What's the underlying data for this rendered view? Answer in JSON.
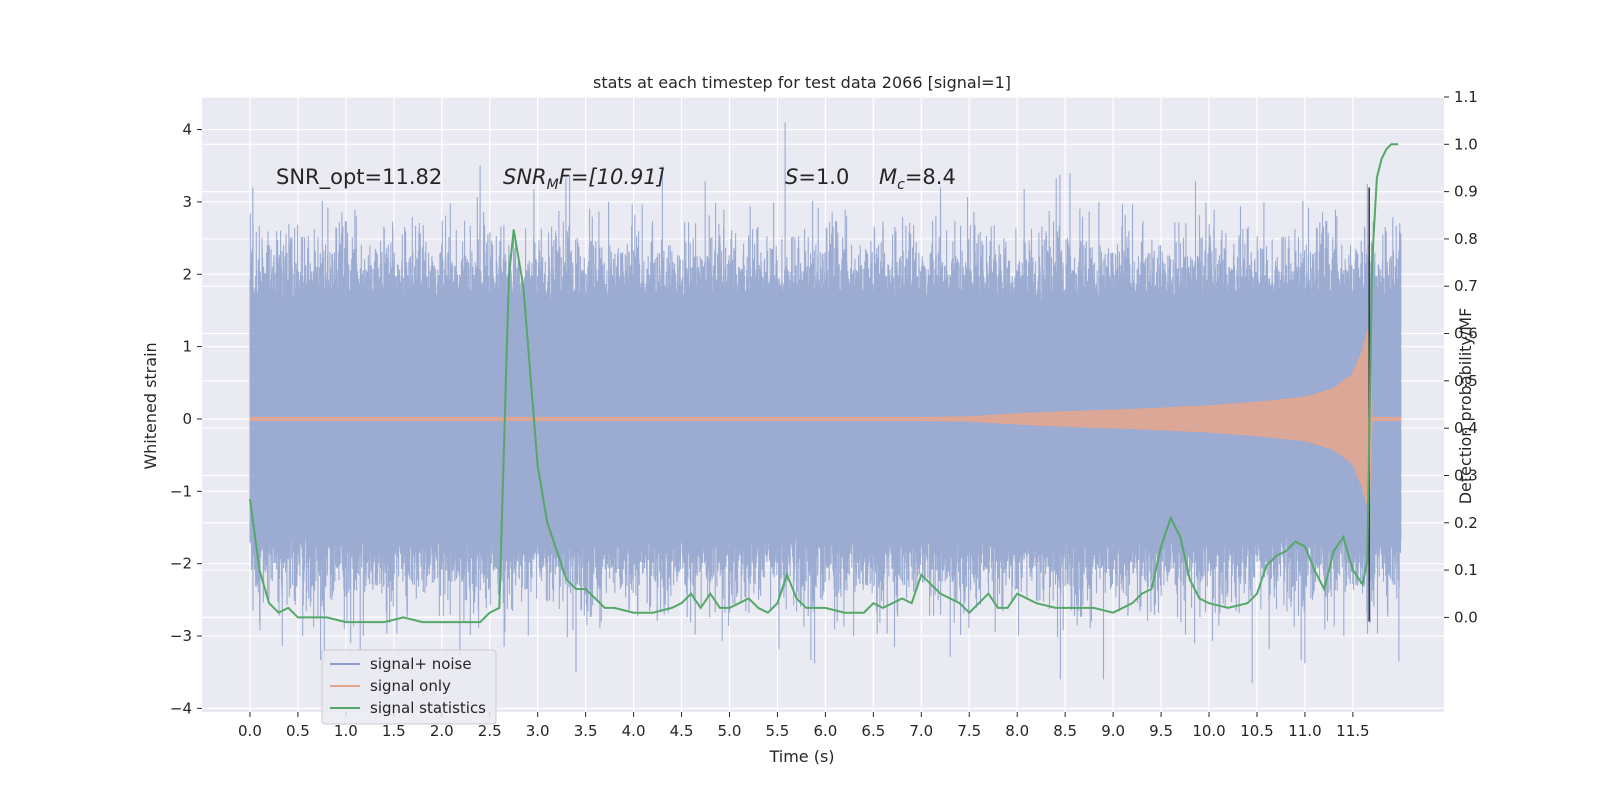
{
  "chart_data": {
    "type": "line",
    "title": "stats at each timestep for test data 2066 [signal=1]",
    "xlabel": "Time (s)",
    "ylabel": "Whitened strain",
    "ylabel_right": "Detection probability/MF",
    "xlim": [
      -0.5,
      12.45
    ],
    "ylim": [
      -4.05,
      4.45
    ],
    "ylim_right": [
      -0.2,
      1.1
    ],
    "x_ticks": [
      0.0,
      0.5,
      1.0,
      1.5,
      2.0,
      2.5,
      3.0,
      3.5,
      4.0,
      4.5,
      5.0,
      5.5,
      6.0,
      6.5,
      7.0,
      7.5,
      8.0,
      8.5,
      9.0,
      9.5,
      10.0,
      10.5,
      11.0,
      11.5
    ],
    "x_tick_labels": [
      "0.0",
      "0.5",
      "1.0",
      "1.5",
      "2.0",
      "2.5",
      "3.0",
      "3.5",
      "4.0",
      "4.5",
      "5.0",
      "5.5",
      "6.0",
      "6.5",
      "7.0",
      "7.5",
      "8.0",
      "8.5",
      "9.0",
      "9.5",
      "10.0",
      "10.5",
      "11.0",
      "11.5"
    ],
    "y_ticks": [
      -4,
      -3,
      -2,
      -1,
      0,
      1,
      2,
      3,
      4
    ],
    "y_tick_labels": [
      "−4",
      "−3",
      "−2",
      "−1",
      "0",
      "1",
      "2",
      "3",
      "4"
    ],
    "y_right_ticks": [
      0.0,
      0.1,
      0.2,
      0.3,
      0.4,
      0.5,
      0.6,
      0.7,
      0.8,
      0.9,
      1.0,
      1.1
    ],
    "y_right_tick_labels": [
      "0.0",
      "0.1",
      "0.2",
      "0.3",
      "0.4",
      "0.5",
      "0.6",
      "0.7",
      "0.8",
      "0.9",
      "1.0",
      "1.1"
    ],
    "grid": true,
    "legend_position": "bottom-left",
    "annotations": {
      "snr_opt": "SNR_opt=11.82",
      "snr_mf_base": "SNR",
      "snr_mf_sub": "M",
      "snr_mf_rest": "F=[10.91]",
      "s_symbol": "S",
      "s_value": "=1.0",
      "mc_base": "M",
      "mc_sub": "c",
      "mc_value": "=8.4"
    },
    "series": [
      {
        "name": "signal+ noise",
        "color": "#8da0cb",
        "description_axis": "left",
        "x_range": [
          0.0,
          12.0
        ],
        "typical_envelope": [
          -1.6,
          1.6
        ],
        "peak_values": [
          {
            "x": 0.03,
            "y": 3.2
          },
          {
            "x": 0.55,
            "y": -3.0
          },
          {
            "x": 1.05,
            "y": -3.1
          },
          {
            "x": 1.15,
            "y": -3.2
          },
          {
            "x": 2.4,
            "y": 3.5
          },
          {
            "x": 2.65,
            "y": -3.15
          },
          {
            "x": 3.4,
            "y": -3.5
          },
          {
            "x": 4.3,
            "y": 3.5
          },
          {
            "x": 5.58,
            "y": 4.1
          },
          {
            "x": 6.72,
            "y": -3.15
          },
          {
            "x": 7.2,
            "y": 3.2
          },
          {
            "x": 8.45,
            "y": -3.6
          },
          {
            "x": 8.55,
            "y": 3.4
          },
          {
            "x": 8.9,
            "y": -3.6
          },
          {
            "x": 9.85,
            "y": -3.1
          },
          {
            "x": 10.45,
            "y": -3.65
          },
          {
            "x": 11.65,
            "y": 3.25
          },
          {
            "x": 11.65,
            "y": -2.8
          },
          {
            "x": 11.98,
            "y": -3.35
          }
        ]
      },
      {
        "name": "signal only",
        "color": "#e6a68c",
        "description_axis": "left",
        "amplitude_envelope": [
          [
            0.0,
            0.02
          ],
          [
            7.0,
            0.02
          ],
          [
            7.5,
            0.03
          ],
          [
            8.0,
            0.07
          ],
          [
            8.5,
            0.1
          ],
          [
            9.0,
            0.12
          ],
          [
            9.5,
            0.15
          ],
          [
            10.0,
            0.18
          ],
          [
            10.5,
            0.23
          ],
          [
            11.0,
            0.3
          ],
          [
            11.3,
            0.42
          ],
          [
            11.5,
            0.62
          ],
          [
            11.6,
            0.95
          ],
          [
            11.67,
            1.3
          ],
          [
            11.7,
            0.02
          ],
          [
            12.0,
            0.02
          ]
        ]
      },
      {
        "name": "signal statistics",
        "color": "#55a868",
        "description_axis": "right",
        "x": [
          0.0,
          0.1,
          0.2,
          0.3,
          0.4,
          0.5,
          0.6,
          0.8,
          1.0,
          1.2,
          1.4,
          1.6,
          1.8,
          2.0,
          2.2,
          2.4,
          2.5,
          2.6,
          2.7,
          2.75,
          2.85,
          3.0,
          3.1,
          3.2,
          3.3,
          3.4,
          3.5,
          3.6,
          3.7,
          3.8,
          4.0,
          4.2,
          4.4,
          4.5,
          4.6,
          4.7,
          4.8,
          4.9,
          5.0,
          5.1,
          5.2,
          5.3,
          5.4,
          5.5,
          5.6,
          5.7,
          5.8,
          6.0,
          6.2,
          6.4,
          6.5,
          6.6,
          6.8,
          6.9,
          7.0,
          7.1,
          7.2,
          7.4,
          7.5,
          7.6,
          7.7,
          7.8,
          7.9,
          8.0,
          8.2,
          8.4,
          8.6,
          8.8,
          9.0,
          9.2,
          9.3,
          9.4,
          9.5,
          9.6,
          9.7,
          9.8,
          9.9,
          10.0,
          10.2,
          10.4,
          10.5,
          10.6,
          10.7,
          10.8,
          10.9,
          11.0,
          11.1,
          11.2,
          11.3,
          11.4,
          11.5,
          11.6,
          11.65,
          11.7,
          11.75,
          11.8,
          11.85,
          11.9,
          11.97
        ],
        "values": [
          0.25,
          0.1,
          0.03,
          0.01,
          0.02,
          0.0,
          0.0,
          0.0,
          -0.01,
          -0.01,
          -0.01,
          0.0,
          -0.01,
          -0.01,
          -0.01,
          -0.01,
          0.01,
          0.02,
          0.72,
          0.82,
          0.7,
          0.32,
          0.2,
          0.14,
          0.08,
          0.06,
          0.06,
          0.04,
          0.02,
          0.02,
          0.01,
          0.01,
          0.02,
          0.03,
          0.05,
          0.02,
          0.05,
          0.02,
          0.02,
          0.03,
          0.04,
          0.02,
          0.01,
          0.03,
          0.09,
          0.04,
          0.02,
          0.02,
          0.01,
          0.01,
          0.03,
          0.02,
          0.04,
          0.03,
          0.09,
          0.07,
          0.05,
          0.03,
          0.01,
          0.03,
          0.05,
          0.02,
          0.02,
          0.05,
          0.03,
          0.02,
          0.02,
          0.02,
          0.01,
          0.03,
          0.05,
          0.06,
          0.15,
          0.21,
          0.17,
          0.08,
          0.04,
          0.03,
          0.02,
          0.03,
          0.05,
          0.11,
          0.13,
          0.14,
          0.16,
          0.15,
          0.1,
          0.06,
          0.14,
          0.17,
          0.1,
          0.07,
          0.12,
          0.75,
          0.93,
          0.97,
          0.99,
          1.0,
          1.0
        ]
      }
    ]
  }
}
